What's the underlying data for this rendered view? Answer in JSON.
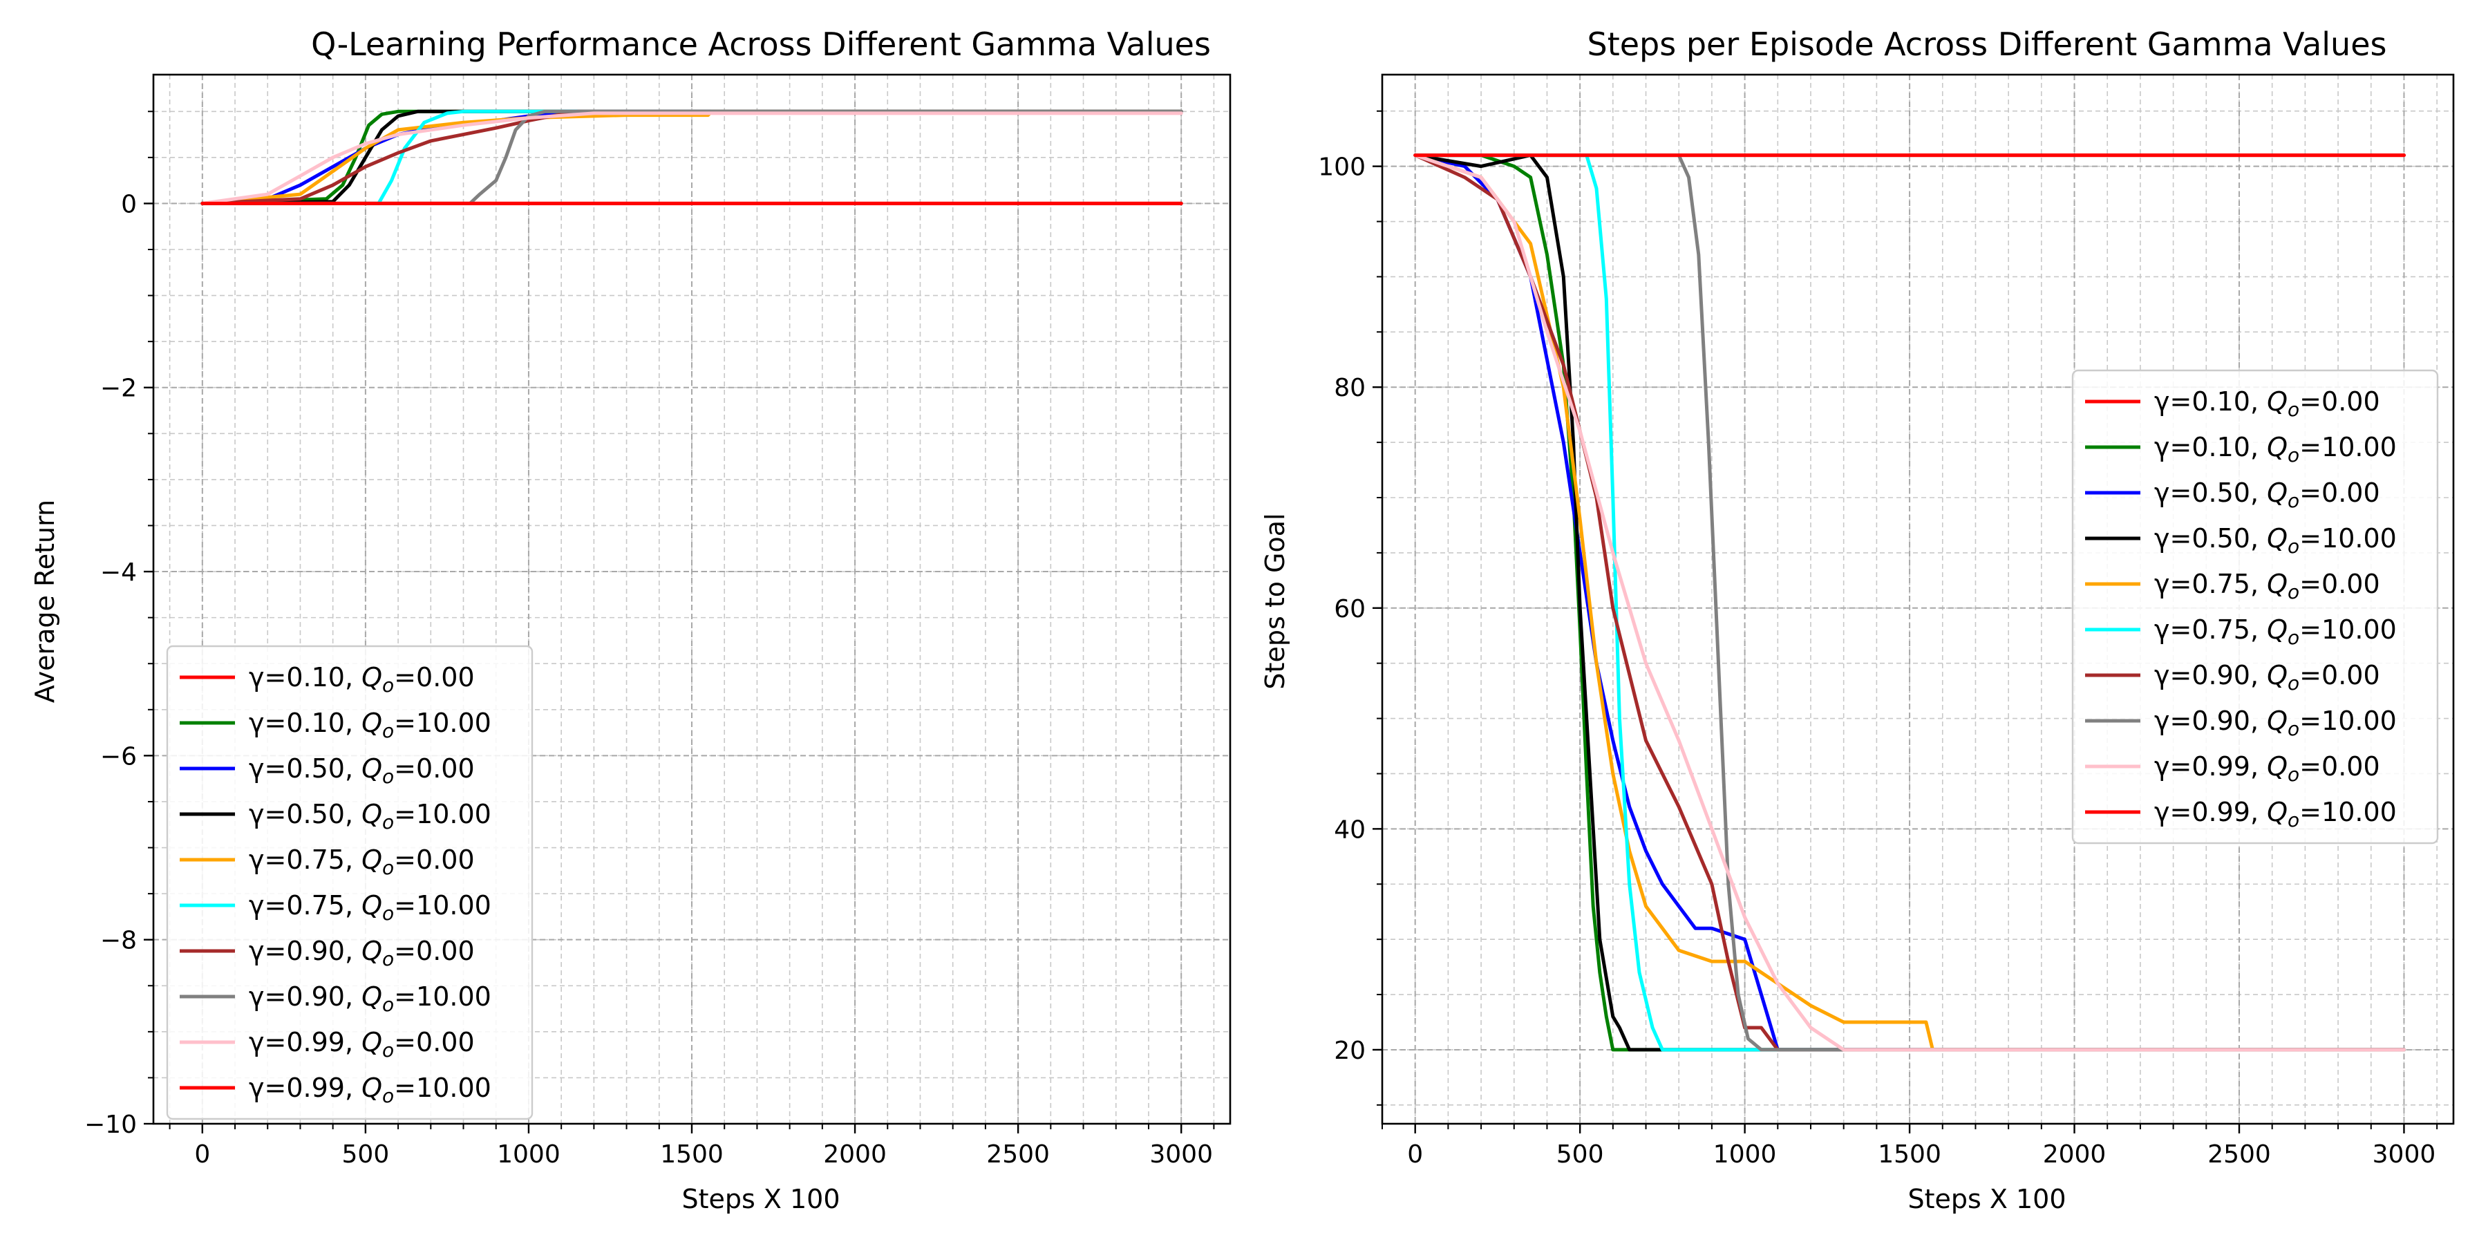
{
  "figure": {
    "background": "#ffffff"
  },
  "chart_data": [
    {
      "type": "line",
      "title": "Q-Learning Performance Across Different Gamma Values",
      "xlabel": "Steps X 100",
      "ylabel": "Average Return",
      "xlim": [
        -150,
        3150
      ],
      "ylim": [
        -10,
        1.4
      ],
      "xticks": [
        0,
        500,
        1000,
        1500,
        2000,
        2500,
        3000
      ],
      "xtick_labels": [
        "0",
        "500",
        "1000",
        "1500",
        "2000",
        "2500",
        "3000"
      ],
      "yticks": [
        -10,
        -8,
        -6,
        -4,
        -2,
        0
      ],
      "ytick_labels": [
        "−10",
        "−8",
        "−6",
        "−4",
        "−2",
        "0"
      ],
      "grid": true,
      "minor_grid": true,
      "legend_position": "lower-left",
      "series": [
        {
          "name": "γ=0.10, Q_o=0.00",
          "color": "#ff0000",
          "x": [
            0,
            3000
          ],
          "y": [
            0,
            0
          ]
        },
        {
          "name": "γ=0.10, Q_o=10.00",
          "color": "#008000",
          "x": [
            0,
            380,
            430,
            470,
            510,
            550,
            600,
            3000
          ],
          "y": [
            0,
            0.05,
            0.2,
            0.5,
            0.85,
            0.97,
            1.0,
            1.0
          ]
        },
        {
          "name": "γ=0.50, Q_o=0.00",
          "color": "#0000ff",
          "x": [
            0,
            200,
            300,
            400,
            500,
            600,
            700,
            800,
            900,
            1000,
            1100,
            3000
          ],
          "y": [
            0,
            0.05,
            0.2,
            0.4,
            0.6,
            0.75,
            0.82,
            0.86,
            0.9,
            0.95,
            1.0,
            1.0
          ]
        },
        {
          "name": "γ=0.50, Q_o=10.00",
          "color": "#000000",
          "x": [
            0,
            400,
            450,
            500,
            550,
            600,
            660,
            750,
            3000
          ],
          "y": [
            0,
            0.02,
            0.2,
            0.5,
            0.8,
            0.95,
            1.0,
            1.0,
            1.0
          ]
        },
        {
          "name": "γ=0.75, Q_o=0.00",
          "color": "#ffa500",
          "x": [
            0,
            300,
            400,
            500,
            600,
            800,
            1000,
            1200,
            1300,
            1550,
            1560,
            3000
          ],
          "y": [
            0,
            0.1,
            0.35,
            0.6,
            0.8,
            0.88,
            0.93,
            0.95,
            0.96,
            0.96,
            1.0,
            1.0
          ]
        },
        {
          "name": "γ=0.75, Q_o=10.00",
          "color": "#00ffff",
          "x": [
            0,
            540,
            580,
            620,
            680,
            750,
            800,
            3000
          ],
          "y": [
            0,
            0,
            0.25,
            0.6,
            0.88,
            0.98,
            1.0,
            1.0
          ]
        },
        {
          "name": "γ=0.90, Q_o=0.00",
          "color": "#a52a2a",
          "x": [
            0,
            300,
            400,
            500,
            600,
            700,
            800,
            900,
            1000,
            1100,
            1150,
            3000
          ],
          "y": [
            0,
            0.05,
            0.2,
            0.4,
            0.55,
            0.68,
            0.75,
            0.82,
            0.9,
            0.97,
            1.0,
            1.0
          ]
        },
        {
          "name": "γ=0.90, Q_o=10.00",
          "color": "#808080",
          "x": [
            0,
            820,
            850,
            900,
            930,
            960,
            1000,
            1050,
            3000
          ],
          "y": [
            0,
            0,
            0.1,
            0.25,
            0.5,
            0.8,
            0.95,
            1.0,
            1.0
          ]
        },
        {
          "name": "γ=0.99, Q_o=0.00",
          "color": "#ffc0cb",
          "x": [
            0,
            200,
            300,
            400,
            500,
            600,
            800,
            1000,
            1200,
            3000
          ],
          "y": [
            0,
            0.1,
            0.3,
            0.5,
            0.65,
            0.75,
            0.85,
            0.93,
            0.98,
            0.98
          ]
        },
        {
          "name": "γ=0.99, Q_o=10.00",
          "color": "#ff0000",
          "x": [
            0,
            3000
          ],
          "y": [
            0,
            0
          ]
        }
      ]
    },
    {
      "type": "line",
      "title": "Steps per Episode Across Different Gamma Values",
      "xlabel": "Steps X 100",
      "ylabel": "Steps to Goal",
      "xlim": [
        -100,
        3150
      ],
      "ylim": [
        13.3,
        108.3
      ],
      "xticks": [
        0,
        500,
        1000,
        1500,
        2000,
        2500,
        3000
      ],
      "xtick_labels": [
        "0",
        "500",
        "1000",
        "1500",
        "2000",
        "2500",
        "3000"
      ],
      "yticks": [
        20,
        40,
        60,
        80,
        100
      ],
      "ytick_labels": [
        "20",
        "40",
        "60",
        "80",
        "100"
      ],
      "grid": true,
      "minor_grid": true,
      "legend_position": "center-right",
      "series": [
        {
          "name": "γ=0.10, Q_o=0.00",
          "color": "#ff0000",
          "x": [
            0,
            3000
          ],
          "y": [
            101,
            101
          ]
        },
        {
          "name": "γ=0.10, Q_o=10.00",
          "color": "#008000",
          "x": [
            0,
            200,
            300,
            350,
            400,
            450,
            480,
            500,
            520,
            540,
            560,
            580,
            600,
            3000
          ],
          "y": [
            101,
            101,
            100,
            99,
            92,
            82,
            70,
            58,
            45,
            33,
            27,
            23,
            20,
            20
          ]
        },
        {
          "name": "γ=0.50, Q_o=0.00",
          "color": "#0000ff",
          "x": [
            0,
            150,
            250,
            350,
            450,
            500,
            550,
            600,
            650,
            700,
            750,
            800,
            850,
            900,
            1000,
            1050,
            1100,
            3000
          ],
          "y": [
            101,
            100,
            97,
            90,
            75,
            65,
            55,
            48,
            42,
            38,
            35,
            33,
            31,
            31,
            30,
            25,
            20,
            20
          ]
        },
        {
          "name": "γ=0.50, Q_o=10.00",
          "color": "#000000",
          "x": [
            0,
            200,
            350,
            400,
            450,
            480,
            500,
            530,
            560,
            600,
            620,
            650,
            3000
          ],
          "y": [
            101,
            100,
            101,
            99,
            90,
            75,
            60,
            45,
            30,
            23,
            22,
            20,
            20
          ]
        },
        {
          "name": "γ=0.75, Q_o=0.00",
          "color": "#ffa500",
          "x": [
            0,
            200,
            350,
            450,
            500,
            550,
            600,
            650,
            700,
            800,
            900,
            1000,
            1100,
            1200,
            1300,
            1400,
            1550,
            1570,
            3000
          ],
          "y": [
            101,
            99,
            93,
            80,
            68,
            55,
            45,
            38,
            33,
            29,
            28,
            28,
            26,
            24,
            22.5,
            22.5,
            22.5,
            20,
            20
          ]
        },
        {
          "name": "γ=0.75, Q_o=10.00",
          "color": "#00ffff",
          "x": [
            0,
            520,
            550,
            580,
            600,
            620,
            650,
            680,
            720,
            750,
            800,
            3000
          ],
          "y": [
            101,
            101,
            98,
            88,
            70,
            50,
            35,
            27,
            22,
            20,
            20,
            20
          ]
        },
        {
          "name": "γ=0.90, Q_o=0.00",
          "color": "#a52a2a",
          "x": [
            0,
            150,
            250,
            350,
            450,
            550,
            600,
            700,
            800,
            900,
            950,
            1000,
            1050,
            1100,
            3000
          ],
          "y": [
            101,
            99,
            97,
            90,
            82,
            70,
            60,
            48,
            42,
            35,
            28,
            22,
            22,
            20,
            20
          ]
        },
        {
          "name": "γ=0.90, Q_o=10.00",
          "color": "#808080",
          "x": [
            0,
            800,
            830,
            860,
            890,
            920,
            950,
            980,
            1010,
            1050,
            1100,
            3000
          ],
          "y": [
            101,
            101,
            99,
            92,
            75,
            55,
            35,
            25,
            21,
            20,
            20,
            20
          ]
        },
        {
          "name": "γ=0.99, Q_o=0.00",
          "color": "#ffc0cb",
          "x": [
            0,
            200,
            300,
            400,
            500,
            600,
            700,
            800,
            900,
            1000,
            1100,
            1200,
            1300,
            3000
          ],
          "y": [
            101,
            99,
            95,
            85,
            76,
            65,
            55,
            48,
            40,
            32,
            26,
            22,
            20,
            20
          ]
        },
        {
          "name": "γ=0.99, Q_o=10.00",
          "color": "#ff0000",
          "x": [
            0,
            3000
          ],
          "y": [
            101,
            101
          ]
        }
      ]
    }
  ]
}
